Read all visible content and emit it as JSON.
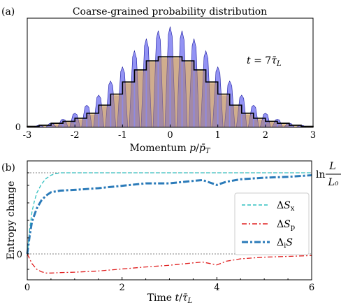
{
  "chart_data": [
    {
      "panel_label": "(a)",
      "type": "bar",
      "title": "Coarse-grained probability distribution",
      "xlabel": "Momentum p/p̄_T",
      "ylabel": "",
      "annotation": "t = 7τ̄_L",
      "xlim": [
        -3,
        3
      ],
      "ylim": [
        0,
        1.0
      ],
      "xticks": [
        "-3",
        "-2",
        "-1",
        "0",
        "1",
        "2",
        "3"
      ],
      "yticks": [
        "0"
      ],
      "bin_width": 0.25,
      "coarse_bins": {
        "x_centers": [
          -2.875,
          -2.625,
          -2.375,
          -2.125,
          -1.875,
          -1.625,
          -1.375,
          -1.125,
          -0.875,
          -0.625,
          -0.375,
          -0.125,
          0.125,
          0.375,
          0.625,
          0.875,
          1.125,
          1.375,
          1.625,
          1.875,
          2.125,
          2.375,
          2.625,
          2.875
        ],
        "values": [
          0.01,
          0.02,
          0.04,
          0.06,
          0.09,
          0.14,
          0.22,
          0.33,
          0.45,
          0.57,
          0.66,
          0.7,
          0.7,
          0.66,
          0.57,
          0.45,
          0.33,
          0.22,
          0.14,
          0.09,
          0.06,
          0.04,
          0.02,
          0.01
        ]
      },
      "fine_peaks": {
        "x": [
          -2.75,
          -2.5,
          -2.25,
          -2.0,
          -1.75,
          -1.5,
          -1.25,
          -1.0,
          -0.75,
          -0.5,
          -0.25,
          0.0,
          0.25,
          0.5,
          0.75,
          1.0,
          1.25,
          1.5,
          1.75,
          2.0,
          2.25,
          2.5,
          2.75
        ],
        "values": [
          0.02,
          0.04,
          0.08,
          0.14,
          0.22,
          0.32,
          0.46,
          0.6,
          0.76,
          0.88,
          0.96,
          1.0,
          0.96,
          0.88,
          0.76,
          0.6,
          0.46,
          0.32,
          0.22,
          0.14,
          0.08,
          0.04,
          0.02
        ]
      },
      "colors": {
        "fine": "#6f6ff0",
        "coarse": "#b08878",
        "coarse_light": "#f5d9a6",
        "step": "#000000"
      }
    },
    {
      "panel_label": "(b)",
      "type": "line",
      "xlabel": "Time t/τ̄_L",
      "ylabel": "Entropy change",
      "xlim": [
        0,
        6
      ],
      "ylim": [
        -0.3,
        1.1
      ],
      "xticks": [
        "0",
        "2",
        "4",
        "6"
      ],
      "yticks": [
        "0"
      ],
      "reference_level_label_top": "L",
      "reference_level_label_bottom": "L₀",
      "reference_level_prefix": "ln",
      "legend_position": "right",
      "series": [
        {
          "name": "ΔS_x",
          "color": "#30c0c0",
          "style": "dashed",
          "x": [
            0,
            0.05,
            0.1,
            0.15,
            0.2,
            0.3,
            0.4,
            0.5,
            0.6,
            0.7,
            0.8,
            1.0,
            1.5,
            2,
            3,
            4,
            5,
            6
          ],
          "y": [
            0,
            0.3,
            0.52,
            0.65,
            0.75,
            0.86,
            0.93,
            0.97,
            0.99,
            1.0,
            1.0,
            1.0,
            1.0,
            1.0,
            1.0,
            1.0,
            1.0,
            1.0
          ]
        },
        {
          "name": "ΔS_p",
          "color": "#e02020",
          "style": "dashdot",
          "x": [
            0,
            0.1,
            0.2,
            0.3,
            0.4,
            0.5,
            0.7,
            1.0,
            1.5,
            2.0,
            2.5,
            3.0,
            3.5,
            3.7,
            4.0,
            4.2,
            4.5,
            5.0,
            5.5,
            6.0
          ],
          "y": [
            0,
            -0.12,
            -0.19,
            -0.22,
            -0.235,
            -0.235,
            -0.23,
            -0.225,
            -0.21,
            -0.185,
            -0.16,
            -0.14,
            -0.11,
            -0.1,
            -0.135,
            -0.09,
            -0.06,
            -0.04,
            -0.03,
            -0.02
          ]
        },
        {
          "name": "Δ_iS",
          "color": "#2b7bb9",
          "style": "thickdashdot",
          "x": [
            0,
            0.05,
            0.1,
            0.2,
            0.3,
            0.4,
            0.5,
            0.7,
            1.0,
            1.5,
            2.0,
            2.5,
            3.0,
            3.5,
            3.7,
            4.0,
            4.2,
            4.5,
            5.0,
            5.5,
            6.0
          ],
          "y": [
            0,
            0.22,
            0.4,
            0.56,
            0.66,
            0.72,
            0.76,
            0.78,
            0.79,
            0.81,
            0.84,
            0.87,
            0.87,
            0.9,
            0.91,
            0.85,
            0.89,
            0.92,
            0.94,
            0.95,
            0.97
          ]
        }
      ]
    }
  ]
}
